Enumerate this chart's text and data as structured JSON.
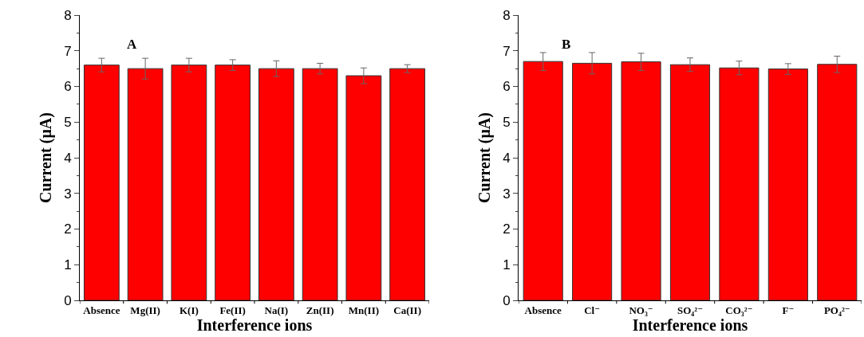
{
  "chart_data": [
    {
      "type": "bar",
      "xlabel": "Interference ions",
      "ylabel": "Current (μA)",
      "annotations": [
        "A"
      ],
      "categories": [
        "Absence",
        "Mg(II)",
        "K(I)",
        "Fe(II)",
        "Na(I)",
        "Zn(II)",
        "Mn(II)",
        "Ca(II)"
      ],
      "values": [
        6.6,
        6.5,
        6.6,
        6.6,
        6.5,
        6.5,
        6.3,
        6.5
      ],
      "errors": [
        0.19,
        0.29,
        0.19,
        0.15,
        0.22,
        0.15,
        0.22,
        0.11
      ],
      "color": "#ff0000",
      "ylim": [
        0,
        8
      ],
      "yticks": [
        0,
        1,
        2,
        3,
        4,
        5,
        6,
        7,
        8
      ],
      "grid": false,
      "legend": false
    },
    {
      "type": "bar",
      "xlabel": "Interference ions",
      "ylabel": "Current (μA)",
      "annotations": [
        "B"
      ],
      "categories": [
        "Absence",
        "Cl⁻",
        "NO₃⁻",
        "SO₄²⁻",
        "CO₃²⁻",
        "F⁻",
        "PO₄²⁻"
      ],
      "values": [
        6.7,
        6.65,
        6.69,
        6.61,
        6.52,
        6.49,
        6.62
      ],
      "errors": [
        0.25,
        0.3,
        0.24,
        0.19,
        0.19,
        0.15,
        0.23
      ],
      "color": "#ff0000",
      "ylim": [
        0,
        8
      ],
      "yticks": [
        0,
        1,
        2,
        3,
        4,
        5,
        6,
        7,
        8
      ],
      "grid": false,
      "legend": false
    }
  ]
}
